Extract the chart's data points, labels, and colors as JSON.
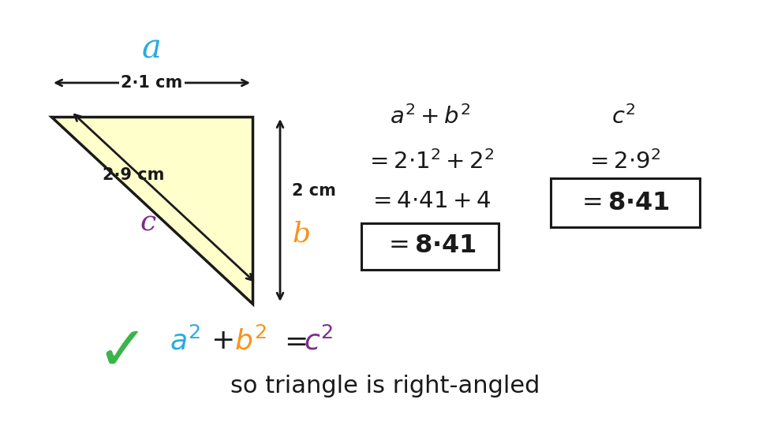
{
  "bg_color": "#ffffff",
  "triangle_fill": "#ffffcc",
  "triangle_stroke": "#1a1a1a",
  "color_a": "#29abe2",
  "color_b": "#f7941d",
  "color_c": "#7b2d8b",
  "color_black": "#1a1a1a",
  "color_green": "#39b54a",
  "dim_a": "2·1 cm",
  "dim_b": "2 cm",
  "dim_c": "2·9 cm",
  "bottom_text": "so triangle is right-angled"
}
